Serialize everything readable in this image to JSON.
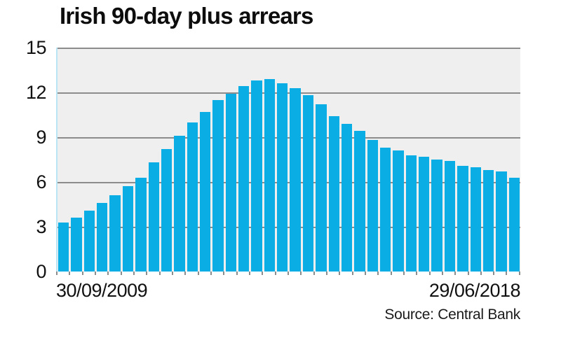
{
  "title": "Irish 90-day plus arrears",
  "source_label": "Source: Central Bank",
  "colors": {
    "bar": "#0aaee4",
    "plot_background": "#efefef",
    "gridline": "#8c8c8c",
    "left_axis_line": "#b9e5f4",
    "text": "#111111"
  },
  "chart_data": {
    "type": "bar",
    "title": "Irish 90-day plus arrears",
    "x_first_label": "30/09/2009",
    "x_last_label": "29/06/2018",
    "x_frequency": "quarterly",
    "n_bars": 36,
    "values": [
      3.3,
      3.6,
      4.1,
      4.6,
      5.1,
      5.7,
      6.3,
      7.3,
      8.2,
      9.1,
      10.0,
      10.7,
      11.5,
      11.9,
      12.4,
      12.8,
      12.9,
      12.6,
      12.3,
      11.8,
      11.2,
      10.4,
      9.9,
      9.4,
      8.8,
      8.3,
      8.1,
      7.8,
      7.7,
      7.5,
      7.4,
      7.1,
      7.0,
      6.8,
      6.7,
      6.3
    ],
    "ylim": [
      0,
      15
    ],
    "yticks": [
      0,
      3,
      6,
      9,
      12,
      15
    ],
    "grid": true,
    "legend": false,
    "source": "Source: Central Bank"
  }
}
